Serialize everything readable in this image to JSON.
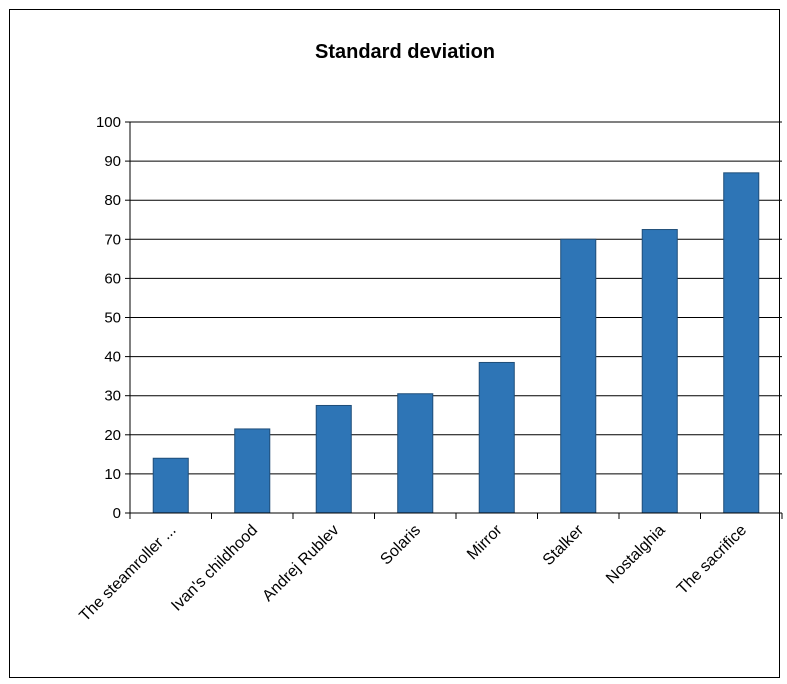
{
  "chart_data": {
    "type": "bar",
    "title": "Standard deviation",
    "xlabel": "",
    "ylabel": "",
    "categories": [
      "The steamroller ...",
      "Ivan's childhood",
      "Andrej Rublev",
      "Solaris",
      "Mirror",
      "Stalker",
      "Nostalghia",
      "The sacrifice"
    ],
    "values": [
      14,
      21.5,
      27.5,
      30.5,
      38.5,
      70,
      72.5,
      87
    ],
    "ylim": [
      0,
      100
    ],
    "yticks": [
      0,
      10,
      20,
      30,
      40,
      50,
      60,
      70,
      80,
      90,
      100
    ],
    "grid": true,
    "legend": "none",
    "colors": {
      "bar": "#2e75b6",
      "bar_edge": "#1f4e79",
      "grid": "#000000",
      "axis": "#000000"
    }
  }
}
